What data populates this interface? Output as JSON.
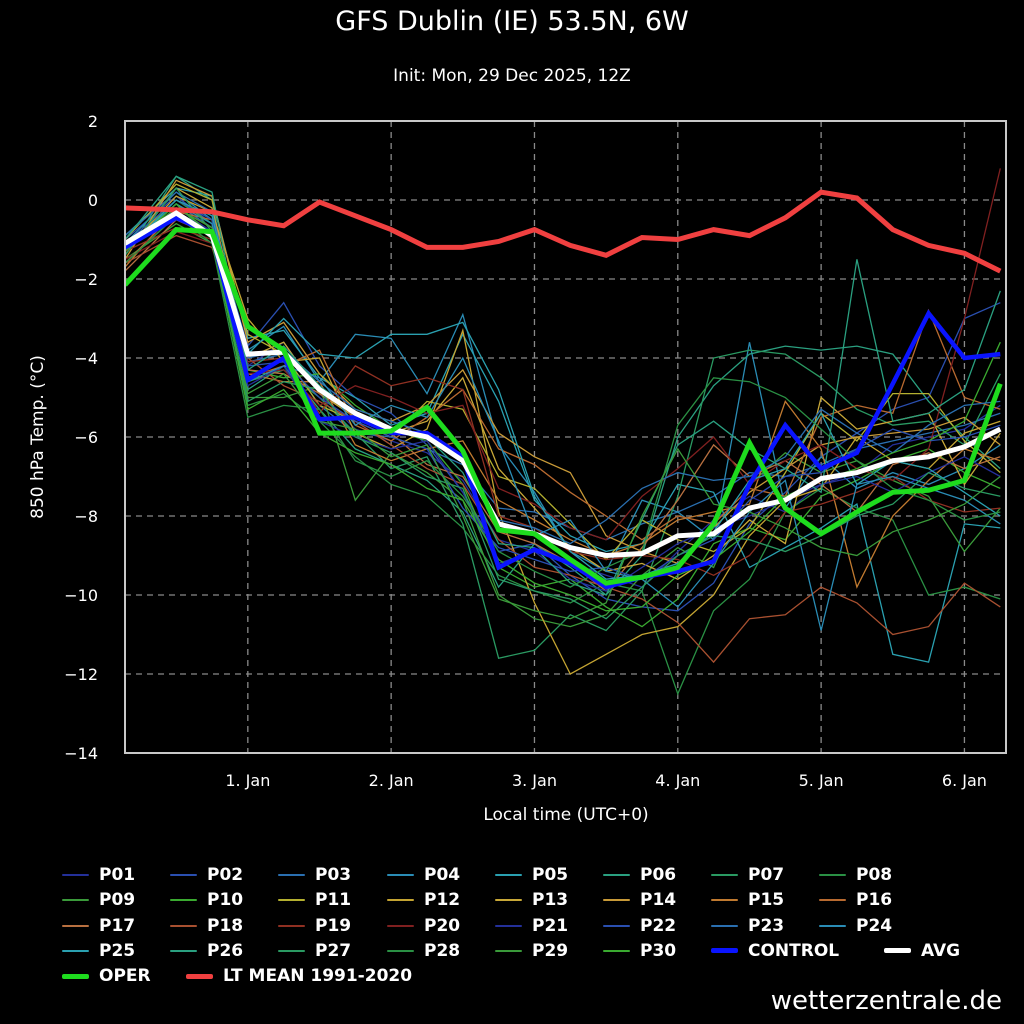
{
  "title": "GFS Dublin (IE) 53.5N, 6W",
  "subtitle": "Init: Mon, 29 Dec 2025, 12Z",
  "watermark": "wetterzentrale.de",
  "chart_data": {
    "type": "line",
    "title": "GFS Dublin (IE) 53.5N, 6W",
    "xlabel": "Local time (UTC+0)",
    "ylabel": "850 hPa Temp. (°C)",
    "x_units": "days relative to 1 Jan 00:00",
    "xlim": [
      -0.857,
      5.29
    ],
    "ylim": [
      -14,
      2
    ],
    "grid": true,
    "legend_placement": "bottom",
    "yticks": [
      2,
      0,
      -2,
      -4,
      -6,
      -8,
      -10,
      -12,
      -14
    ],
    "ytick_labels": [
      "2",
      "0",
      "−2",
      "−4",
      "−6",
      "−8",
      "−10",
      "−12",
      "−14"
    ],
    "xticks": [
      0,
      1,
      2,
      3,
      4,
      5
    ],
    "xtick_labels": [
      "1. Jan",
      "2. Jan",
      "3. Jan",
      "4. Jan",
      "5. Jan",
      "6. Jan"
    ],
    "x": [
      -0.857,
      -0.5,
      -0.25,
      0,
      0.25,
      0.5,
      0.75,
      1,
      1.25,
      1.5,
      1.75,
      2,
      2.25,
      2.5,
      2.75,
      3,
      3.25,
      3.5,
      3.75,
      4,
      4.25,
      4.5,
      4.75,
      5,
      5.25
    ],
    "members": [
      {
        "name": "P01",
        "color": "#24309a",
        "values": [
          -1.3,
          -0.2,
          -0.8,
          -4.2,
          -3.6,
          -4.9,
          -5.8,
          -6.1,
          -6.4,
          -7.1,
          -8.6,
          -8.9,
          -9.2,
          -9.5,
          -9.8,
          -8.9,
          -8.1,
          -7.5,
          -7.9,
          -7.2,
          -6.9,
          -6.2,
          -6.0,
          -5.8,
          -5.2
        ]
      },
      {
        "name": "P02",
        "color": "#2a4fb0",
        "values": [
          -1.0,
          0.1,
          -0.6,
          -3.7,
          -2.6,
          -4.2,
          -5.0,
          -5.4,
          -6.2,
          -7.4,
          -8.9,
          -8.7,
          -9.5,
          -10.1,
          -10.3,
          -10.4,
          -9.7,
          -8.2,
          -7.4,
          -6.5,
          -5.9,
          -5.3,
          -5.0,
          -3.0,
          -2.6
        ]
      },
      {
        "name": "P03",
        "color": "#2a6fb0",
        "values": [
          -1.2,
          -0.1,
          -0.7,
          -4.1,
          -3.9,
          -5.2,
          -5.9,
          -6.0,
          -6.3,
          -6.7,
          -7.8,
          -7.9,
          -8.3,
          -8.6,
          -8.2,
          -7.9,
          -7.5,
          -6.9,
          -7.0,
          -6.7,
          -6.3,
          -6.1,
          -5.9,
          -5.7,
          -5.4
        ]
      },
      {
        "name": "P04",
        "color": "#2a8cb5",
        "values": [
          -1.1,
          0.2,
          -0.5,
          -3.8,
          -3.2,
          -4.6,
          -3.4,
          -3.5,
          -4.9,
          -2.9,
          -6.2,
          -7.4,
          -8.9,
          -9.4,
          -7.6,
          -7.9,
          -8.6,
          -3.6,
          -7.8,
          -6.5,
          -7.3,
          -6.9,
          -7.2,
          -6.8,
          -6.2
        ]
      },
      {
        "name": "P05",
        "color": "#2aa0b0",
        "values": [
          -0.9,
          0.3,
          0.1,
          -3.5,
          -3.3,
          -4.5,
          -5.0,
          -5.7,
          -5.4,
          -3.4,
          -5.1,
          -7.6,
          -8.5,
          -8.9,
          -8.7,
          -7.2,
          -7.4,
          -9.3,
          -8.8,
          -8.3,
          -7.7,
          -11.5,
          -11.7,
          -8.2,
          -8.3
        ]
      },
      {
        "name": "P06",
        "color": "#2aa080",
        "values": [
          -1.4,
          0.6,
          0.0,
          -4.8,
          -4.2,
          -5.3,
          -6.3,
          -6.7,
          -7.1,
          -7.9,
          -9.8,
          -8.7,
          -9.3,
          -10.0,
          -9.0,
          -6.0,
          -4.7,
          -3.9,
          -3.7,
          -3.8,
          -3.7,
          -3.9,
          -5.1,
          -6.0,
          -6.8
        ]
      },
      {
        "name": "P07",
        "color": "#2a9a62",
        "values": [
          -1.6,
          -0.4,
          -0.9,
          -4.6,
          -4.3,
          -5.0,
          -5.9,
          -6.8,
          -6.5,
          -8.2,
          -11.6,
          -11.4,
          -10.5,
          -10.9,
          -9.9,
          -7.5,
          -4.0,
          -3.8,
          -3.9,
          -4.5,
          -5.3,
          -5.7,
          -5.6,
          -6.2,
          -4.4
        ]
      },
      {
        "name": "P08",
        "color": "#2a9044",
        "values": [
          -1.3,
          -0.1,
          -1.0,
          -5.2,
          -4.9,
          -5.6,
          -6.5,
          -7.2,
          -7.5,
          -8.3,
          -9.5,
          -9.9,
          -10.2,
          -9.7,
          -9.9,
          -12.5,
          -10.4,
          -9.6,
          -7.9,
          -7.3,
          -7.8,
          -8.1,
          -10.0,
          -9.8,
          -10.1
        ]
      },
      {
        "name": "P09",
        "color": "#3a9a3a",
        "values": [
          -1.5,
          -0.6,
          -1.1,
          -5.0,
          -5.0,
          -4.7,
          -7.6,
          -6.4,
          -6.9,
          -7.6,
          -10.0,
          -10.6,
          -10.8,
          -10.5,
          -9.5,
          -8.8,
          -9.3,
          -7.2,
          -6.4,
          -6.9,
          -6.6,
          -7.1,
          -7.5,
          -8.9,
          -7.8
        ]
      },
      {
        "name": "P10",
        "color": "#3aaa30",
        "values": [
          -1.2,
          0.0,
          -0.6,
          -4.3,
          -4.5,
          -4.4,
          -5.2,
          -5.8,
          -6.1,
          -7.2,
          -9.3,
          -9.8,
          -9.6,
          -10.3,
          -10.8,
          -10.1,
          -8.7,
          -8.3,
          -8.6,
          -7.5,
          -7.1,
          -6.6,
          -6.3,
          -6.9,
          -7.3
        ]
      },
      {
        "name": "P11",
        "color": "#b4b030",
        "values": [
          -1.0,
          0.4,
          0.0,
          -3.4,
          -3.9,
          -5.2,
          -5.6,
          -6.0,
          -5.1,
          -5.3,
          -7.0,
          -7.3,
          -8.2,
          -9.1,
          -8.1,
          -8.6,
          -8.9,
          -8.3,
          -6.9,
          -5.4,
          -6.1,
          -4.9,
          -4.9,
          -6.1,
          -6.9
        ]
      },
      {
        "name": "P12",
        "color": "#c4a432",
        "values": [
          -1.3,
          0.1,
          -0.3,
          -3.0,
          -4.1,
          -4.0,
          -5.9,
          -6.3,
          -5.8,
          -3.3,
          -7.9,
          -10.2,
          -12.0,
          -11.5,
          -11.0,
          -10.8,
          -10.0,
          -8.5,
          -7.6,
          -7.3,
          -6.0,
          -6.6,
          -6.8,
          -5.9,
          -5.6
        ]
      },
      {
        "name": "P13",
        "color": "#c8a838",
        "values": [
          -1.4,
          0.3,
          -0.2,
          -4.0,
          -3.6,
          -4.9,
          -5.5,
          -5.9,
          -5.6,
          -4.5,
          -6.8,
          -7.8,
          -8.8,
          -9.4,
          -9.2,
          -9.6,
          -9.0,
          -8.1,
          -8.7,
          -5.0,
          -5.8,
          -5.6,
          -5.4,
          -7.2,
          -5.9
        ]
      },
      {
        "name": "P14",
        "color": "#c89a38",
        "values": [
          -1.5,
          0.5,
          0.1,
          -3.6,
          -3.1,
          -4.4,
          -5.3,
          -5.6,
          -5.2,
          -4.3,
          -5.9,
          -6.5,
          -6.9,
          -8.5,
          -8.9,
          -9.2,
          -8.3,
          -7.4,
          -6.8,
          -6.2,
          -6.0,
          -5.9,
          -5.8,
          -5.5,
          -6.2
        ]
      },
      {
        "name": "P15",
        "color": "#c07a30",
        "values": [
          -1.7,
          -0.2,
          -0.7,
          -4.4,
          -4.6,
          -4.6,
          -6.2,
          -6.6,
          -6.3,
          -6.1,
          -7.6,
          -8.1,
          -8.6,
          -9.0,
          -8.7,
          -8.1,
          -7.9,
          -7.7,
          -5.1,
          -6.3,
          -9.8,
          -8.0,
          -7.1,
          -6.3,
          -6.6
        ]
      },
      {
        "name": "P16",
        "color": "#b86a30",
        "values": [
          -1.6,
          -0.3,
          -0.5,
          -4.5,
          -4.2,
          -3.8,
          -5.7,
          -6.1,
          -5.5,
          -4.8,
          -6.3,
          -6.7,
          -7.4,
          -8.0,
          -8.6,
          -8.0,
          -8.2,
          -7.3,
          -7.5,
          -5.5,
          -5.2,
          -5.4,
          -2.8,
          -5.0,
          -5.3
        ]
      },
      {
        "name": "P17",
        "color": "#b87040",
        "values": [
          -1.8,
          -0.5,
          -0.9,
          -4.3,
          -4.4,
          -4.9,
          -5.4,
          -5.9,
          -6.7,
          -7.0,
          -8.4,
          -8.7,
          -9.2,
          -9.9,
          -8.8,
          -7.6,
          -6.2,
          -7.0,
          -6.6,
          -7.2,
          -7.9,
          -6.7,
          -6.4,
          -6.8,
          -6.5
        ]
      },
      {
        "name": "P18",
        "color": "#a85030",
        "values": [
          -1.6,
          -0.9,
          -1.2,
          -4.0,
          -4.7,
          -5.1,
          -5.6,
          -6.2,
          -6.8,
          -7.2,
          -8.6,
          -9.3,
          -9.5,
          -9.8,
          -10.1,
          -10.7,
          -11.7,
          -10.6,
          -10.5,
          -9.8,
          -10.2,
          -11.0,
          -10.8,
          -9.7,
          -10.3
        ]
      },
      {
        "name": "P19",
        "color": "#903022",
        "values": [
          -1.3,
          -0.7,
          -1.0,
          -4.1,
          -4.0,
          -5.4,
          -4.2,
          -4.7,
          -4.5,
          -4.8,
          -8.0,
          -8.3,
          -8.9,
          -9.1,
          -9.0,
          -9.1,
          -9.5,
          -9.0,
          -7.9,
          -7.7,
          -7.4,
          -7.0,
          -7.6,
          -7.9,
          -7.8
        ]
      },
      {
        "name": "P20",
        "color": "#802020",
        "values": [
          -1.5,
          -0.8,
          -1.1,
          -4.4,
          -4.3,
          -5.2,
          -4.7,
          -5.0,
          -5.4,
          -5.2,
          -7.3,
          -7.7,
          -8.3,
          -8.6,
          -7.5,
          -6.8,
          -6.0,
          -7.2,
          -6.6,
          -6.2,
          -6.8,
          -7.1,
          -6.3,
          -3.0,
          0.8
        ]
      },
      {
        "name": "P21",
        "color": "#24309a",
        "values": [
          -1.2,
          -0.3,
          -0.8,
          -4.7,
          -4.2,
          -5.6,
          -6.0,
          -6.3,
          -6.1,
          -7.4,
          -9.2,
          -8.9,
          -9.6,
          -9.9,
          -9.3,
          -8.7,
          -8.3,
          -8.0,
          -7.6,
          -7.2,
          -7.0,
          -7.4,
          -6.9,
          -6.5,
          -7.0
        ]
      },
      {
        "name": "P22",
        "color": "#2a4fb0",
        "values": [
          -1.1,
          0.0,
          -0.5,
          -4.2,
          -4.1,
          -5.0,
          -5.6,
          -6.0,
          -6.3,
          -7.8,
          -8.8,
          -9.1,
          -9.4,
          -9.3,
          -9.6,
          -9.0,
          -8.6,
          -7.6,
          -7.0,
          -6.9,
          -6.3,
          -5.8,
          -6.1,
          -6.0,
          -5.7
        ]
      },
      {
        "name": "P23",
        "color": "#2a6fb0",
        "values": [
          -0.9,
          0.2,
          -0.3,
          -4.0,
          -3.8,
          -4.6,
          -5.3,
          -5.6,
          -5.9,
          -6.6,
          -8.1,
          -8.3,
          -8.7,
          -8.1,
          -7.3,
          -6.9,
          -7.1,
          -7.0,
          -6.5,
          -5.3,
          -5.9,
          -6.4,
          -5.7,
          -5.2,
          -5.1
        ]
      },
      {
        "name": "P24",
        "color": "#2a8cb5",
        "values": [
          -1.2,
          -0.1,
          -0.6,
          -4.6,
          -4.2,
          -4.5,
          -5.7,
          -5.2,
          -5.5,
          -4.0,
          -6.1,
          -8.5,
          -8.1,
          -9.4,
          -9.6,
          -10.3,
          -9.2,
          -7.9,
          -7.1,
          -10.9,
          -7.2,
          -7.0,
          -7.3,
          -7.6,
          -8.2
        ]
      },
      {
        "name": "P25",
        "color": "#2aa0b0",
        "values": [
          -1.3,
          0.0,
          -0.4,
          -3.9,
          -3.0,
          -3.9,
          -4.0,
          -3.4,
          -3.4,
          -3.1,
          -4.8,
          -7.5,
          -8.9,
          -9.6,
          -9.5,
          -9.2,
          -8.4,
          -7.1,
          -6.8,
          -5.4,
          -7.2,
          -6.6,
          -6.8,
          -7.4,
          -8.0
        ]
      },
      {
        "name": "P26",
        "color": "#2aa080",
        "values": [
          -1.0,
          0.6,
          0.2,
          -4.3,
          -3.7,
          -4.7,
          -5.4,
          -5.8,
          -6.0,
          -6.9,
          -8.7,
          -8.8,
          -9.7,
          -10.0,
          -8.1,
          -6.2,
          -5.6,
          -6.3,
          -6.8,
          -7.4,
          -1.5,
          -5.6,
          -5.4,
          -4.8,
          -2.3
        ]
      },
      {
        "name": "P27",
        "color": "#2a9a62",
        "values": [
          -1.4,
          0.3,
          -0.8,
          -5.1,
          -4.6,
          -4.8,
          -6.0,
          -6.4,
          -7.0,
          -7.3,
          -9.6,
          -9.9,
          -10.1,
          -10.6,
          -9.8,
          -9.0,
          -8.5,
          -8.6,
          -8.9,
          -8.5,
          -8.0,
          -7.7,
          -6.9,
          -7.3,
          -7.5
        ]
      },
      {
        "name": "P28",
        "color": "#2a9044",
        "values": [
          -1.6,
          -0.4,
          -1.1,
          -5.5,
          -5.2,
          -5.3,
          -6.6,
          -7.0,
          -6.6,
          -7.5,
          -8.9,
          -9.4,
          -9.8,
          -9.3,
          -8.9,
          -5.7,
          -4.5,
          -4.6,
          -5.0,
          -5.8,
          -6.6,
          -7.3,
          -7.6,
          -8.1,
          -7.9
        ]
      },
      {
        "name": "P29",
        "color": "#3a9a3a",
        "values": [
          -1.2,
          -0.2,
          -0.7,
          -4.9,
          -4.4,
          -5.6,
          -5.8,
          -6.5,
          -6.2,
          -8.0,
          -10.1,
          -10.4,
          -10.6,
          -10.2,
          -8.0,
          -6.3,
          -7.7,
          -7.9,
          -8.3,
          -8.8,
          -9.0,
          -8.4,
          -8.1,
          -7.7,
          -7.0
        ]
      },
      {
        "name": "P30",
        "color": "#3aaa30",
        "values": [
          -1.3,
          -0.1,
          -0.9,
          -5.3,
          -4.8,
          -5.9,
          -6.4,
          -6.7,
          -7.3,
          -7.6,
          -9.1,
          -9.7,
          -10.0,
          -10.4,
          -10.3,
          -9.5,
          -9.1,
          -8.4,
          -7.5,
          -7.1,
          -6.8,
          -6.4,
          -6.1,
          -5.6,
          -3.6
        ]
      }
    ],
    "highlight_series": [
      {
        "name": "LT MEAN 1991-2020",
        "color": "#f04040",
        "values": [
          -0.2,
          -0.25,
          -0.3,
          -0.5,
          -0.65,
          -0.05,
          -0.4,
          -0.75,
          -1.2,
          -1.2,
          -1.05,
          -0.75,
          -1.15,
          -1.4,
          -0.95,
          -1.0,
          -0.75,
          -0.9,
          -0.45,
          0.2,
          0.05,
          -0.75,
          -1.15,
          -1.35,
          -1.8
        ]
      },
      {
        "name": "CONTROL",
        "color": "#0a14ff",
        "values": [
          -1.2,
          -0.45,
          -0.85,
          -4.55,
          -4.0,
          -5.55,
          -5.5,
          -5.9,
          -5.9,
          -6.5,
          -9.3,
          -8.85,
          -9.2,
          -9.8,
          -9.55,
          -9.4,
          -9.15,
          -7.2,
          -5.7,
          -6.8,
          -6.4,
          -4.65,
          -2.87,
          -4.0,
          -3.9
        ]
      },
      {
        "name": "OPER",
        "color": "#1edc1e",
        "values": [
          -2.15,
          -0.75,
          -0.8,
          -3.2,
          -3.8,
          -5.9,
          -5.9,
          -5.85,
          -5.25,
          -6.35,
          -8.35,
          -8.45,
          -9.1,
          -9.7,
          -9.55,
          -9.3,
          -8.2,
          -6.15,
          -7.8,
          -8.45,
          -7.9,
          -7.4,
          -7.35,
          -7.1,
          -4.65
        ]
      },
      {
        "name": "AVG",
        "color": "#ffffff",
        "values": [
          -1.1,
          -0.33,
          -0.9,
          -3.9,
          -3.85,
          -4.8,
          -5.4,
          -5.8,
          -6.0,
          -6.6,
          -8.2,
          -8.45,
          -8.8,
          -9.0,
          -8.95,
          -8.5,
          -8.45,
          -7.8,
          -7.6,
          -7.05,
          -6.9,
          -6.6,
          -6.5,
          -6.25,
          -5.8
        ]
      }
    ],
    "legend_order": [
      "P01",
      "P02",
      "P03",
      "P04",
      "P05",
      "P06",
      "P07",
      "P08",
      "P09",
      "P10",
      "P11",
      "P12",
      "P13",
      "P14",
      "P15",
      "P16",
      "P17",
      "P18",
      "P19",
      "P20",
      "P21",
      "P22",
      "P23",
      "P24",
      "P25",
      "P26",
      "P27",
      "P28",
      "P29",
      "P30",
      "CONTROL",
      "AVG",
      "OPER",
      "LT MEAN 1991-2020"
    ]
  }
}
